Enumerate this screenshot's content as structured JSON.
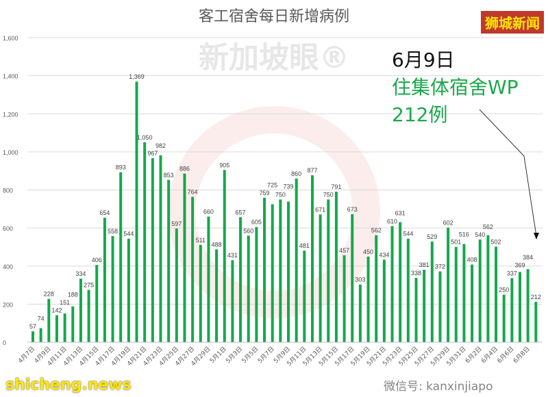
{
  "chart_data": {
    "type": "bar",
    "title": "客工宿舍每日新增病例",
    "ylim": [
      0,
      1600
    ],
    "yticks": [
      "0",
      "200",
      "400",
      "600",
      "800",
      "1,000",
      "1,200",
      "1,400",
      "1,600"
    ],
    "grid": true,
    "bar_color": "#14a84b",
    "categories": [
      "4月7日",
      "4月8日",
      "4月9日",
      "4月10日",
      "4月11日",
      "4月12日",
      "4月13日",
      "4月14日",
      "4月15日",
      "4月16日",
      "4月17日",
      "4月18日",
      "4月19日",
      "4月20日",
      "4月21日",
      "4月22日",
      "4月23日",
      "4月24日",
      "4月25日",
      "4月26日",
      "4月27日",
      "4月28日",
      "4月29日",
      "4月30日",
      "5月1日",
      "5月2日",
      "5月3日",
      "5月4日",
      "5月5日",
      "5月6日",
      "5月7日",
      "5月8日",
      "5月9日",
      "5月10日",
      "5月11日",
      "5月12日",
      "5月13日",
      "5月14日",
      "5月15日",
      "5月16日",
      "5月17日",
      "5月18日",
      "5月19日",
      "5月20日",
      "5月21日",
      "5月22日",
      "5月23日",
      "5月24日",
      "5月25日",
      "5月26日",
      "5月27日",
      "5月28日",
      "5月29日",
      "5月30日",
      "5月31日",
      "6月1日",
      "6月2日",
      "6月3日",
      "6月4日",
      "6月5日",
      "6月6日",
      "6月7日",
      "6月8日",
      "6月9日"
    ],
    "values": [
      57,
      74,
      228,
      142,
      151,
      188,
      334,
      275,
      406,
      654,
      558,
      893,
      544,
      1369,
      1050,
      967,
      982,
      853,
      597,
      886,
      764,
      511,
      660,
      488,
      905,
      431,
      657,
      560,
      605,
      759,
      725,
      750,
      739,
      860,
      481,
      877,
      671,
      750,
      791,
      457,
      673,
      303,
      450,
      562,
      434,
      610,
      631,
      544,
      338,
      381,
      529,
      372,
      602,
      501,
      516,
      408,
      540,
      562,
      502,
      250,
      337,
      369,
      384,
      212
    ],
    "annotation": {
      "date": "6月9日",
      "line1": "住集体宿舍WP",
      "line2": "212例"
    }
  },
  "watermarks": {
    "logo": "狮城新闻",
    "site": "shicheng.news",
    "center": "新加坡眼®",
    "wechat": "微信号: kanxinjiapo"
  }
}
